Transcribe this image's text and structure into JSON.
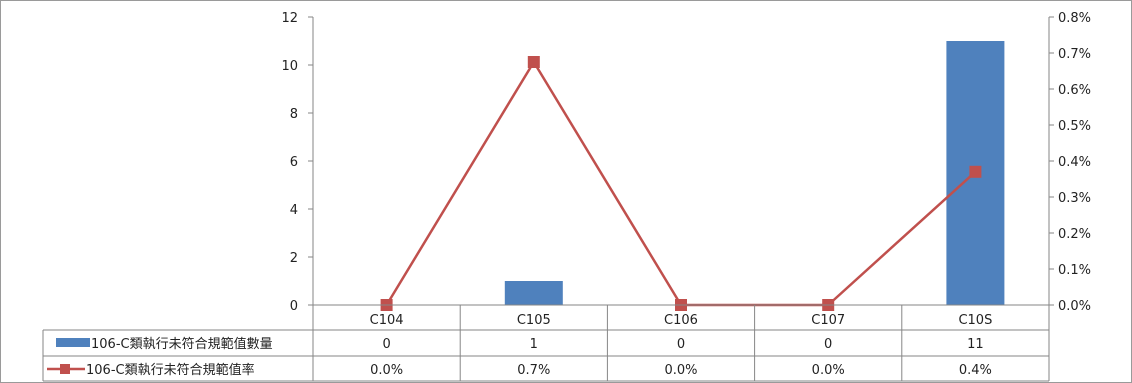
{
  "chart_data": {
    "type": "bar",
    "categories": [
      "C104",
      "C105",
      "C106",
      "C107",
      "C10S"
    ],
    "y_left": {
      "ticks": [
        0,
        2,
        4,
        6,
        8,
        10,
        12
      ],
      "lim": [
        0,
        12
      ]
    },
    "y_right": {
      "ticks": [
        "0.0%",
        "0.1%",
        "0.2%",
        "0.3%",
        "0.4%",
        "0.5%",
        "0.6%",
        "0.7%",
        "0.8%"
      ],
      "lim": [
        0,
        0.8
      ]
    },
    "series": [
      {
        "name": "106-C類執行未符合規範值數量",
        "type": "bar",
        "axis": "left",
        "values": [
          0,
          1,
          0,
          0,
          11
        ],
        "table_values": [
          "0",
          "1",
          "0",
          "0",
          "11"
        ],
        "color": "#4f81bd"
      },
      {
        "name": "106-C類執行未符合規範值率",
        "type": "line",
        "axis": "right",
        "values": [
          0.0,
          0.675,
          0.0,
          0.0,
          0.37
        ],
        "table_values": [
          "0.0%",
          "0.7%",
          "0.0%",
          "0.0%",
          "0.4%"
        ],
        "color": "#c0504d"
      }
    ],
    "data_table": true,
    "grid": false,
    "legend": "in data table"
  }
}
